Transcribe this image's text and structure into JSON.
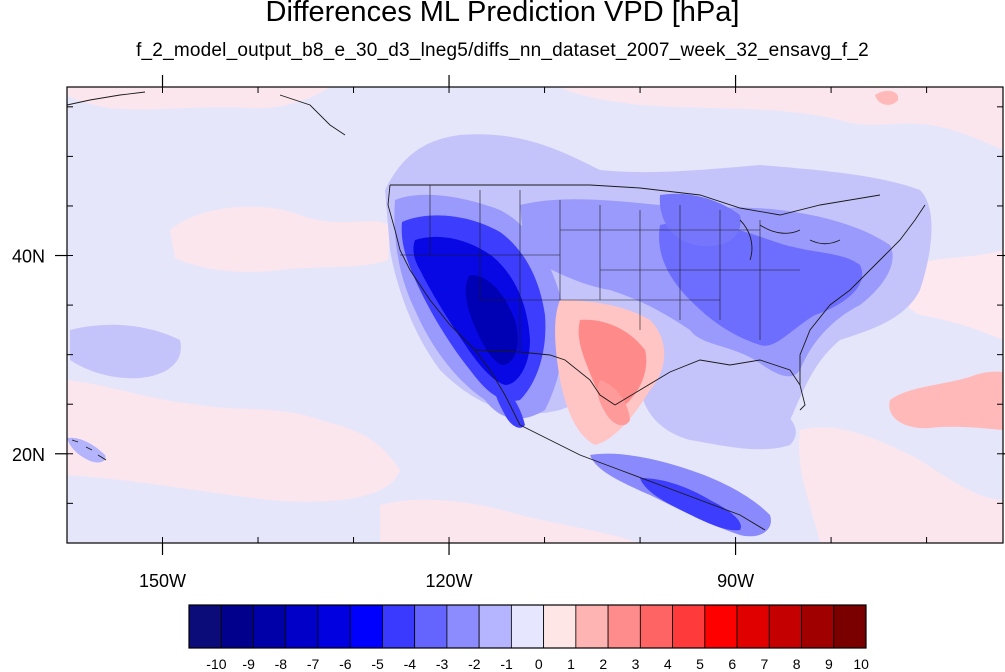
{
  "title": "Differences ML Prediction VPD [hPa]",
  "subtitle": "f_2_model_output_b8_e_30_d3_lneg5/diffs_nn_dataset_2007_week_32_ensavg_f_2",
  "map": {
    "lon_range": [
      -160,
      -62
    ],
    "lat_range": [
      11,
      57
    ],
    "x_ticks": [
      {
        "lon": -150,
        "label": "150W"
      },
      {
        "lon": -120,
        "label": "120W"
      },
      {
        "lon": -90,
        "label": "90W"
      }
    ],
    "y_ticks": [
      {
        "lat": 40,
        "label": "40N"
      },
      {
        "lat": 20,
        "label": "20N"
      }
    ]
  },
  "colorbar": {
    "labels": [
      "-10",
      "-9",
      "-8",
      "-7",
      "-6",
      "-5",
      "-4",
      "-3",
      "-2",
      "-1",
      "0",
      "1",
      "2",
      "3",
      "4",
      "5",
      "6",
      "7",
      "8",
      "9",
      "10"
    ],
    "colors": [
      "#0b0b7a",
      "#00008c",
      "#0000a8",
      "#0000c8",
      "#0000e0",
      "#0000ff",
      "#3a3aff",
      "#6464ff",
      "#8c8cff",
      "#b4b4ff",
      "#e6e6ff",
      "#ffe6e6",
      "#ffb4b4",
      "#ff8c8c",
      "#ff6464",
      "#ff3a3a",
      "#ff0000",
      "#e00000",
      "#c40000",
      "#a00000",
      "#7a0000"
    ]
  },
  "regions": [
    {
      "name": "western-us-anomaly",
      "level": -8
    },
    {
      "name": "central-us-anomaly",
      "level": -3
    },
    {
      "name": "eastern-us-anomaly",
      "level": -3
    },
    {
      "name": "texas-mexico-anomaly",
      "level": 3
    },
    {
      "name": "central-america-anomaly",
      "level": -4
    },
    {
      "name": "north-atlantic-anomaly",
      "level": 2
    },
    {
      "name": "hawaii-anomaly",
      "level": -2
    }
  ]
}
